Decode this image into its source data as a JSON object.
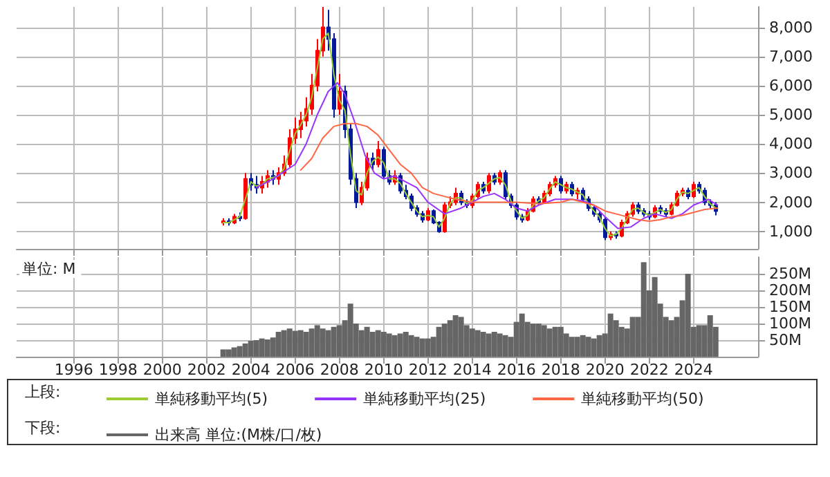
{
  "chart_data": [
    {
      "type": "candlestick",
      "tick_labels": "y",
      "grid": true,
      "legend": "bottom",
      "legend_title": "上段:",
      "xlim": [
        "1993-06",
        "2026-12"
      ],
      "xticks": [
        {
          "value": "1996",
          "label": null
        },
        {
          "value": "1998",
          "label": null
        },
        {
          "value": "2000",
          "label": null
        },
        {
          "value": "2002",
          "label": null
        },
        {
          "value": "2004",
          "label": null
        },
        {
          "value": "2006",
          "label": null
        },
        {
          "value": "2008",
          "label": null
        },
        {
          "value": "2010",
          "label": null
        },
        {
          "value": "2012",
          "label": null
        },
        {
          "value": "2014",
          "label": null
        },
        {
          "value": "2016",
          "label": null
        },
        {
          "value": "2018",
          "label": null
        },
        {
          "value": "2020",
          "label": null
        },
        {
          "value": "2022",
          "label": null
        },
        {
          "value": "2024",
          "label": null
        }
      ],
      "ylim": [
        400,
        8700
      ],
      "yticks": [
        {
          "value": 1000,
          "label": "1,000"
        },
        {
          "value": 2000,
          "label": "2,000"
        },
        {
          "value": 3000,
          "label": "3,000"
        },
        {
          "value": 4000,
          "label": "4,000"
        },
        {
          "value": 5000,
          "label": "5,000"
        },
        {
          "value": 6000,
          "label": "6,000"
        },
        {
          "value": 7000,
          "label": "7,000"
        },
        {
          "value": 8000,
          "label": "8,000"
        }
      ],
      "x": [
        "2002-10",
        "2003-01",
        "2003-04",
        "2003-07",
        "2003-10",
        "2004-01",
        "2004-04",
        "2004-07",
        "2004-10",
        "2005-01",
        "2005-04",
        "2005-07",
        "2005-10",
        "2006-01",
        "2006-04",
        "2006-07",
        "2006-10",
        "2007-01",
        "2007-04",
        "2007-07",
        "2007-10",
        "2008-01",
        "2008-04",
        "2008-07",
        "2008-10",
        "2009-01",
        "2009-04",
        "2009-07",
        "2009-10",
        "2010-01",
        "2010-04",
        "2010-07",
        "2010-10",
        "2011-01",
        "2011-04",
        "2011-07",
        "2011-10",
        "2012-01",
        "2012-04",
        "2012-07",
        "2012-10",
        "2013-01",
        "2013-04",
        "2013-07",
        "2013-10",
        "2014-01",
        "2014-04",
        "2014-07",
        "2014-10",
        "2015-01",
        "2015-04",
        "2015-07",
        "2015-10",
        "2016-01",
        "2016-04",
        "2016-07",
        "2016-10",
        "2017-01",
        "2017-04",
        "2017-07",
        "2017-10",
        "2018-01",
        "2018-04",
        "2018-07",
        "2018-10",
        "2019-01",
        "2019-04",
        "2019-07",
        "2019-10",
        "2020-01",
        "2020-04",
        "2020-07",
        "2020-10",
        "2021-01",
        "2021-04",
        "2021-07",
        "2021-10",
        "2022-01",
        "2022-04",
        "2022-07",
        "2022-10",
        "2023-01",
        "2023-04",
        "2023-07",
        "2023-10",
        "2024-01",
        "2024-04",
        "2024-07",
        "2024-10",
        "2025-01"
      ],
      "ohlc": [
        [
          1300,
          1450,
          1200,
          1350
        ],
        [
          1350,
          1450,
          1200,
          1300
        ],
        [
          1300,
          1600,
          1250,
          1500
        ],
        [
          1500,
          1650,
          1350,
          1450
        ],
        [
          1450,
          3000,
          1400,
          2800
        ],
        [
          2800,
          3000,
          2400,
          2600
        ],
        [
          2600,
          2900,
          2300,
          2500
        ],
        [
          2500,
          2900,
          2300,
          2700
        ],
        [
          2700,
          3100,
          2500,
          2900
        ],
        [
          2900,
          3100,
          2600,
          2800
        ],
        [
          2800,
          3200,
          2600,
          3000
        ],
        [
          3000,
          3600,
          2900,
          3300
        ],
        [
          3300,
          4500,
          3200,
          4200
        ],
        [
          4200,
          4900,
          4000,
          4500
        ],
        [
          4500,
          5100,
          4200,
          4800
        ],
        [
          4800,
          5600,
          4600,
          5200
        ],
        [
          5200,
          6400,
          5000,
          6000
        ],
        [
          6000,
          7600,
          5800,
          7200
        ],
        [
          7200,
          8700,
          7000,
          8000
        ],
        [
          8000,
          8600,
          7200,
          7600
        ],
        [
          7600,
          7800,
          4900,
          5200
        ],
        [
          5200,
          6400,
          5000,
          5800
        ],
        [
          5800,
          6000,
          4200,
          4500
        ],
        [
          4500,
          4700,
          2600,
          2800
        ],
        [
          2800,
          3000,
          1800,
          2000
        ],
        [
          2000,
          2700,
          1900,
          2500
        ],
        [
          2500,
          3700,
          2400,
          3500
        ],
        [
          3500,
          3700,
          3100,
          3300
        ],
        [
          3300,
          4100,
          3200,
          3800
        ],
        [
          3800,
          3900,
          2800,
          2900
        ],
        [
          2900,
          3100,
          2600,
          2700
        ],
        [
          2700,
          3100,
          2600,
          2900
        ],
        [
          2900,
          3000,
          2300,
          2400
        ],
        [
          2400,
          2600,
          2100,
          2200
        ],
        [
          2200,
          2300,
          1700,
          1800
        ],
        [
          1800,
          1900,
          1500,
          1600
        ],
        [
          1600,
          1700,
          1300,
          1400
        ],
        [
          1400,
          1800,
          1350,
          1700
        ],
        [
          1700,
          1750,
          1250,
          1300
        ],
        [
          1300,
          1350,
          950,
          1000
        ],
        [
          1000,
          2000,
          950,
          1900
        ],
        [
          1900,
          2200,
          1800,
          2000
        ],
        [
          2000,
          2500,
          1900,
          2300
        ],
        [
          2300,
          2400,
          1900,
          2000
        ],
        [
          2000,
          2100,
          1800,
          1900
        ],
        [
          1900,
          2300,
          1800,
          2200
        ],
        [
          2200,
          2700,
          2100,
          2600
        ],
        [
          2600,
          2700,
          2300,
          2400
        ],
        [
          2400,
          3000,
          2300,
          2900
        ],
        [
          2900,
          3000,
          2600,
          2700
        ],
        [
          2700,
          3100,
          2600,
          3000
        ],
        [
          3000,
          3100,
          2100,
          2200
        ],
        [
          2200,
          2300,
          1800,
          1900
        ],
        [
          1900,
          2000,
          1400,
          1500
        ],
        [
          1500,
          1600,
          1300,
          1400
        ],
        [
          1400,
          1800,
          1350,
          1700
        ],
        [
          1700,
          2200,
          1650,
          2100
        ],
        [
          2100,
          2200,
          1900,
          2000
        ],
        [
          2000,
          2400,
          1950,
          2300
        ],
        [
          2300,
          2700,
          2200,
          2600
        ],
        [
          2600,
          2900,
          2500,
          2800
        ],
        [
          2800,
          2900,
          2300,
          2400
        ],
        [
          2400,
          2700,
          2300,
          2600
        ],
        [
          2600,
          2700,
          2200,
          2300
        ],
        [
          2300,
          2500,
          2100,
          2400
        ],
        [
          2400,
          2500,
          2000,
          2100
        ],
        [
          2100,
          2200,
          1700,
          1800
        ],
        [
          1800,
          1900,
          1500,
          1600
        ],
        [
          1600,
          1700,
          1300,
          1400
        ],
        [
          1400,
          1500,
          700,
          800
        ],
        [
          800,
          1000,
          700,
          900
        ],
        [
          900,
          1000,
          750,
          850
        ],
        [
          850,
          1400,
          800,
          1300
        ],
        [
          1300,
          1700,
          1250,
          1600
        ],
        [
          1600,
          2000,
          1500,
          1900
        ],
        [
          1900,
          2000,
          1600,
          1700
        ],
        [
          1700,
          1800,
          1500,
          1600
        ],
        [
          1600,
          1700,
          1400,
          1500
        ],
        [
          1500,
          1900,
          1450,
          1800
        ],
        [
          1800,
          1900,
          1600,
          1700
        ],
        [
          1700,
          1800,
          1500,
          1600
        ],
        [
          1600,
          2000,
          1550,
          1900
        ],
        [
          1900,
          2400,
          1850,
          2300
        ],
        [
          2300,
          2500,
          2200,
          2400
        ],
        [
          2400,
          2500,
          2100,
          2200
        ],
        [
          2200,
          2700,
          2150,
          2600
        ],
        [
          2600,
          2700,
          2300,
          2400
        ],
        [
          2400,
          2500,
          1900,
          2000
        ],
        [
          2000,
          2100,
          1800,
          1900
        ],
        [
          1900,
          2000,
          1550,
          1700
        ]
      ],
      "series": [
        {
          "type": "line",
          "name": "単純移動平均(5)",
          "color": "#99cc33",
          "values": [
            1300,
            1300,
            1400,
            1500,
            2100,
            2700,
            2550,
            2600,
            2800,
            2850,
            2900,
            3150,
            3750,
            4350,
            4650,
            5000,
            5600,
            6600,
            7600,
            7800,
            6400,
            5500,
            5150,
            3650,
            2400,
            2250,
            3000,
            3400,
            3550,
            3350,
            2800,
            2800,
            2650,
            2300,
            2000,
            1700,
            1500,
            1550,
            1500,
            1150,
            1450,
            1950,
            2150,
            2150,
            1950,
            2050,
            2400,
            2500,
            2650,
            2800,
            2850,
            2600,
            2050,
            1700,
            1450,
            1550,
            1900,
            2050,
            2150,
            2450,
            2700,
            2600,
            2500,
            2450,
            2350,
            2250,
            1950,
            1700,
            1500,
            1100,
            850,
            900,
            1100,
            1450,
            1750,
            1800,
            1650,
            1550,
            1650,
            1750,
            1650,
            1750,
            2100,
            2350,
            2300,
            2400,
            2500,
            2200,
            1950,
            1800
          ]
        },
        {
          "type": "line",
          "name": "単純移動平均(25)",
          "color": "#9933ff",
          "x": [
            "2004-04",
            "2005-01",
            "2006-01",
            "2006-07",
            "2007-01",
            "2007-07",
            "2007-12",
            "2008-04",
            "2008-09",
            "2009-03",
            "2009-08",
            "2010-01",
            "2010-07",
            "2011-01",
            "2011-07",
            "2012-01",
            "2012-10",
            "2013-07",
            "2014-07",
            "2015-01",
            "2015-07",
            "2016-01",
            "2016-07",
            "2017-01",
            "2017-10",
            "2018-07",
            "2019-01",
            "2019-07",
            "2020-01",
            "2020-08",
            "2021-03",
            "2021-10",
            "2022-04",
            "2023-01",
            "2023-07",
            "2024-01",
            "2024-09",
            "2025-02"
          ],
          "values": [
            2500,
            2800,
            3300,
            4000,
            5000,
            5800,
            6100,
            5700,
            4800,
            3600,
            3000,
            2800,
            2900,
            2700,
            2500,
            2000,
            1600,
            1800,
            2200,
            2300,
            2100,
            1800,
            1700,
            1900,
            2100,
            2100,
            2050,
            1900,
            1500,
            1100,
            1150,
            1450,
            1600,
            1450,
            1600,
            1900,
            2100,
            1900
          ]
        },
        {
          "type": "line",
          "name": "単純移動平均(50)",
          "color": "#ff6644",
          "x": [
            "2006-04",
            "2006-10",
            "2007-04",
            "2007-10",
            "2008-04",
            "2008-10",
            "2009-04",
            "2009-10",
            "2010-04",
            "2010-10",
            "2011-04",
            "2011-10",
            "2012-04",
            "2012-10",
            "2013-04",
            "2014-01",
            "2015-01",
            "2016-01",
            "2017-01",
            "2018-01",
            "2018-07",
            "2019-01",
            "2019-07",
            "2020-01",
            "2020-07",
            "2021-01",
            "2021-07",
            "2022-01",
            "2022-07",
            "2023-01",
            "2023-07",
            "2024-01",
            "2024-07",
            "2025-02"
          ],
          "values": [
            3100,
            3500,
            4200,
            4600,
            4700,
            4700,
            4600,
            4300,
            3800,
            3300,
            3000,
            2500,
            2300,
            2200,
            2100,
            2000,
            2000,
            2000,
            1950,
            2000,
            2100,
            2000,
            1900,
            1700,
            1600,
            1500,
            1400,
            1350,
            1400,
            1500,
            1550,
            1650,
            1750,
            1800
          ]
        }
      ]
    },
    {
      "type": "bar",
      "grid": true,
      "legend": "bottom",
      "legend_title": "下段:",
      "annotations": [
        "単位: M"
      ],
      "xlim": [
        "1993-06",
        "2026-12"
      ],
      "xticks": [
        {
          "value": "1996",
          "label": "1996"
        },
        {
          "value": "1998",
          "label": "1998"
        },
        {
          "value": "2000",
          "label": "2000"
        },
        {
          "value": "2002",
          "label": "2002"
        },
        {
          "value": "2004",
          "label": "2004"
        },
        {
          "value": "2006",
          "label": "2006"
        },
        {
          "value": "2008",
          "label": "2008"
        },
        {
          "value": "2010",
          "label": "2010"
        },
        {
          "value": "2012",
          "label": "2012"
        },
        {
          "value": "2014",
          "label": "2014"
        },
        {
          "value": "2016",
          "label": "2016"
        },
        {
          "value": "2018",
          "label": "2018"
        },
        {
          "value": "2020",
          "label": "2020"
        },
        {
          "value": "2022",
          "label": "2022"
        },
        {
          "value": "2024",
          "label": "2024"
        }
      ],
      "ylim": [
        0,
        300
      ],
      "yticks": [
        {
          "value": 50,
          "label": "50M"
        },
        {
          "value": 100,
          "label": "100M"
        },
        {
          "value": 150,
          "label": "150M"
        },
        {
          "value": 200,
          "label": "200M"
        },
        {
          "value": 250,
          "label": "250M"
        }
      ],
      "x": [
        "2002-10",
        "2003-01",
        "2003-04",
        "2003-07",
        "2003-10",
        "2004-01",
        "2004-04",
        "2004-07",
        "2004-10",
        "2005-01",
        "2005-04",
        "2005-07",
        "2005-10",
        "2006-01",
        "2006-04",
        "2006-07",
        "2006-10",
        "2007-01",
        "2007-04",
        "2007-07",
        "2007-10",
        "2008-01",
        "2008-04",
        "2008-07",
        "2008-10",
        "2009-01",
        "2009-04",
        "2009-07",
        "2009-10",
        "2010-01",
        "2010-04",
        "2010-07",
        "2010-10",
        "2011-01",
        "2011-04",
        "2011-07",
        "2011-10",
        "2012-01",
        "2012-04",
        "2012-07",
        "2012-10",
        "2013-01",
        "2013-04",
        "2013-07",
        "2013-10",
        "2014-01",
        "2014-04",
        "2014-07",
        "2014-10",
        "2015-01",
        "2015-04",
        "2015-07",
        "2015-10",
        "2016-01",
        "2016-04",
        "2016-07",
        "2016-10",
        "2017-01",
        "2017-04",
        "2017-07",
        "2017-10",
        "2018-01",
        "2018-04",
        "2018-07",
        "2018-10",
        "2019-01",
        "2019-04",
        "2019-07",
        "2019-10",
        "2020-01",
        "2020-04",
        "2020-07",
        "2020-10",
        "2021-01",
        "2021-04",
        "2021-07",
        "2021-10",
        "2022-01",
        "2022-04",
        "2022-07",
        "2022-10",
        "2023-01",
        "2023-04",
        "2023-07",
        "2023-10",
        "2024-01",
        "2024-04",
        "2024-07",
        "2024-10",
        "2025-01"
      ],
      "series": [
        {
          "name": "出来高 単位:(M株/口/枚)",
          "color": "#666666",
          "values": [
            22,
            22,
            28,
            32,
            40,
            48,
            50,
            55,
            52,
            58,
            75,
            80,
            85,
            78,
            80,
            75,
            85,
            95,
            85,
            80,
            90,
            95,
            110,
            160,
            100,
            80,
            90,
            75,
            80,
            75,
            70,
            65,
            70,
            75,
            65,
            60,
            55,
            55,
            60,
            90,
            100,
            110,
            125,
            120,
            95,
            85,
            80,
            75,
            70,
            75,
            70,
            65,
            60,
            105,
            130,
            105,
            100,
            100,
            95,
            85,
            90,
            90,
            70,
            60,
            60,
            65,
            60,
            55,
            65,
            70,
            130,
            110,
            90,
            85,
            120,
            120,
            285,
            200,
            240,
            160,
            120,
            110,
            120,
            170,
            250,
            90,
            95,
            95,
            125,
            90
          ]
        }
      ]
    }
  ]
}
